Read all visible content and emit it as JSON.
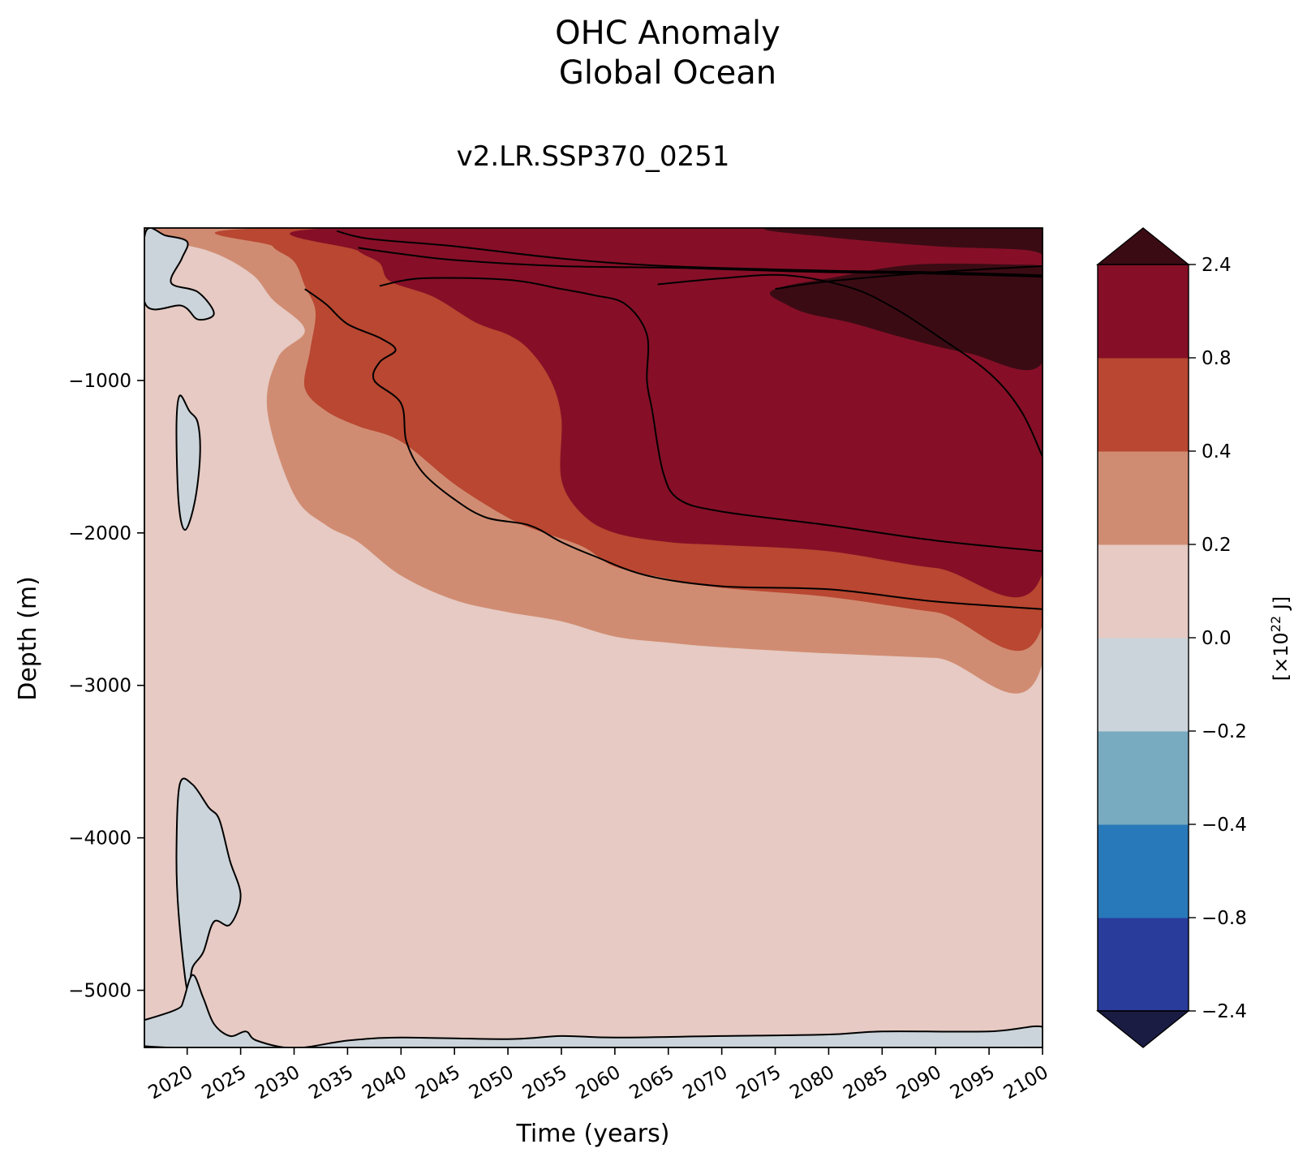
{
  "chart_data": {
    "type": "heatmap",
    "title": "OHC Anomaly\nGlobal Ocean",
    "title_lines": [
      "OHC Anomaly",
      "Global Ocean"
    ],
    "subtitle": "v2.LR.SSP370_0251",
    "xlabel": "Time (years)",
    "ylabel": "Depth (m)",
    "xlim": [
      2016,
      2100
    ],
    "ylim": [
      -5375,
      0
    ],
    "x_ticks": [
      2020,
      2025,
      2030,
      2035,
      2040,
      2045,
      2050,
      2055,
      2060,
      2065,
      2070,
      2075,
      2080,
      2085,
      2090,
      2095,
      2100
    ],
    "x_tick_labels": [
      "2020",
      "2025",
      "2030",
      "2035",
      "2040",
      "2045",
      "2050",
      "2055",
      "2060",
      "2065",
      "2070",
      "2075",
      "2080",
      "2085",
      "2090",
      "2095",
      "2100"
    ],
    "y_ticks": [
      -1000,
      -2000,
      -3000,
      -4000,
      -5000
    ],
    "y_tick_labels": [
      "−1000",
      "−2000",
      "−3000",
      "−4000",
      "−5000"
    ],
    "colorbar": {
      "label_prefix": "[×10",
      "label_exp": "22",
      "label_suffix": " J]",
      "levels": [
        -2.4,
        -0.8,
        -0.4,
        -0.2,
        0.0,
        0.2,
        0.4,
        0.8,
        2.4
      ],
      "tick_labels": [
        "−2.4",
        "−0.8",
        "−0.4",
        "−0.2",
        "0.0",
        "0.2",
        "0.4",
        "0.8",
        "2.4"
      ],
      "colors": [
        "#293c9b",
        "#2879b9",
        "#78aac0",
        "#cbd4da",
        "#e6cac3",
        "#d08c72",
        "#b94731",
        "#860f27"
      ],
      "under_color": "#1a1c44",
      "over_color": "#3b0b14",
      "extend": "both"
    },
    "contour_levels": [
      -0.2,
      0.2,
      0.4,
      0.8,
      1.6,
      2.4
    ],
    "bands": [
      {
        "level": "0.2 to 0.4",
        "color": "#d08c72",
        "boundary": [
          [
            2016.1,
            0
          ],
          [
            2100,
            0
          ],
          [
            2100,
            -2850
          ],
          [
            2090,
            -2820
          ],
          [
            2080,
            -2790
          ],
          [
            2070,
            -2750
          ],
          [
            2065,
            -2720
          ],
          [
            2060,
            -2680
          ],
          [
            2055,
            -2580
          ],
          [
            2050,
            -2520
          ],
          [
            2045,
            -2440
          ],
          [
            2040,
            -2280
          ],
          [
            2036,
            -2060
          ],
          [
            2033,
            -1950
          ],
          [
            2030,
            -1750
          ],
          [
            2027.5,
            -1200
          ],
          [
            2028.5,
            -850
          ],
          [
            2031,
            -670
          ],
          [
            2028,
            -470
          ],
          [
            2026,
            -300
          ],
          [
            2022,
            -150
          ],
          [
            2016.1,
            -60
          ]
        ]
      },
      {
        "level": "0.4 to 0.8",
        "color": "#b94731",
        "boundary": [
          [
            2028,
            0
          ],
          [
            2100,
            0
          ],
          [
            2100,
            -2600
          ],
          [
            2090,
            -2520
          ],
          [
            2080,
            -2420
          ],
          [
            2070,
            -2360
          ],
          [
            2065,
            -2300
          ],
          [
            2060,
            -2220
          ],
          [
            2057,
            -2090
          ],
          [
            2053,
            -1990
          ],
          [
            2050,
            -1900
          ],
          [
            2045,
            -1680
          ],
          [
            2040,
            -1400
          ],
          [
            2036,
            -1300
          ],
          [
            2033,
            -1200
          ],
          [
            2031,
            -1050
          ],
          [
            2031.5,
            -800
          ],
          [
            2032,
            -550
          ],
          [
            2031,
            -380
          ],
          [
            2030,
            -220
          ],
          [
            2028,
            -120
          ]
        ]
      },
      {
        "level": "0.8 to 2.4",
        "color": "#860f27",
        "boundary": [
          [
            2034,
            0
          ],
          [
            2100,
            0
          ],
          [
            2100,
            -2260
          ],
          [
            2090,
            -2230
          ],
          [
            2080,
            -2120
          ],
          [
            2070,
            -2080
          ],
          [
            2065,
            -2060
          ],
          [
            2060,
            -2000
          ],
          [
            2057,
            -1880
          ],
          [
            2055,
            -1650
          ],
          [
            2055,
            -1250
          ],
          [
            2054,
            -1000
          ],
          [
            2052,
            -800
          ],
          [
            2050,
            -700
          ],
          [
            2047,
            -620
          ],
          [
            2043,
            -450
          ],
          [
            2039,
            -350
          ],
          [
            2038,
            -230
          ],
          [
            2036,
            -150
          ]
        ]
      },
      {
        "level": "> 2.4",
        "color": "#3b0b14",
        "boundary": [
          [
            2075,
            0
          ],
          [
            2100,
            0
          ],
          [
            2100,
            -880
          ],
          [
            2093,
            -820
          ],
          [
            2087,
            -720
          ],
          [
            2082,
            -620
          ],
          [
            2078,
            -560
          ],
          [
            2076,
            -500
          ],
          [
            2074.5,
            -430
          ],
          [
            2076,
            -380
          ],
          [
            2080,
            -330
          ],
          [
            2088,
            -240
          ],
          [
            2098,
            -240
          ],
          [
            2100,
            -240
          ],
          [
            2099,
            -150
          ],
          [
            2090,
            -120
          ],
          [
            2080,
            -60
          ]
        ]
      }
    ],
    "negative_regions": [
      {
        "level": "-0.2 to 0.0",
        "color": "#cbd4da",
        "area": "upper left, 0 to -600 m",
        "boundary": [
          [
            2016.1,
            -30
          ],
          [
            2018,
            -50
          ],
          [
            2020,
            -90
          ],
          [
            2019.5,
            -200
          ],
          [
            2018.5,
            -360
          ],
          [
            2021,
            -420
          ],
          [
            2022.5,
            -560
          ],
          [
            2021,
            -600
          ],
          [
            2019.5,
            -510
          ],
          [
            2016.1,
            -500
          ]
        ]
      },
      {
        "level": "-0.2 to 0.0",
        "color": "#cbd4da",
        "area": "mid-depth lens near 2019",
        "boundary": [
          [
            2019.3,
            -1100
          ],
          [
            2020.2,
            -1200
          ],
          [
            2021,
            -1280
          ],
          [
            2021.2,
            -1500
          ],
          [
            2020.7,
            -1800
          ],
          [
            2019.8,
            -1980
          ],
          [
            2019.2,
            -1800
          ],
          [
            2019,
            -1300
          ]
        ]
      },
      {
        "level": "-0.2 to 0.0",
        "color": "#cbd4da",
        "area": "deep lens 2019 to 2025",
        "boundary": [
          [
            2019.3,
            -3650
          ],
          [
            2020.5,
            -3650
          ],
          [
            2022,
            -3800
          ],
          [
            2023,
            -3880
          ],
          [
            2024,
            -4150
          ],
          [
            2025,
            -4380
          ],
          [
            2024,
            -4570
          ],
          [
            2022.5,
            -4550
          ],
          [
            2021.5,
            -4750
          ],
          [
            2020.5,
            -4850
          ],
          [
            2020,
            -5000
          ],
          [
            2019.2,
            -4500
          ],
          [
            2019,
            -4100
          ]
        ]
      },
      {
        "level": "-0.2 to 0.0",
        "color": "#cbd4da",
        "area": "bottom layer",
        "boundary": [
          [
            2018,
            -5375
          ],
          [
            2019.5,
            -5100
          ],
          [
            2020.5,
            -4900
          ],
          [
            2021.5,
            -5050
          ],
          [
            2022.5,
            -5220
          ],
          [
            2024,
            -5300
          ],
          [
            2025.5,
            -5270
          ],
          [
            2026.5,
            -5330
          ],
          [
            2030,
            -5380
          ],
          [
            2035,
            -5330
          ],
          [
            2040,
            -5310
          ],
          [
            2050,
            -5320
          ],
          [
            2055,
            -5300
          ],
          [
            2060,
            -5310
          ],
          [
            2070,
            -5300
          ],
          [
            2080,
            -5290
          ],
          [
            2085,
            -5270
          ],
          [
            2095,
            -5270
          ],
          [
            2100,
            -5240
          ],
          [
            2100,
            -5375
          ]
        ]
      }
    ],
    "contour_lines": [
      {
        "level": 0.8,
        "points": [
          [
            2034,
            -20
          ],
          [
            2037,
            -70
          ],
          [
            2045,
            -120
          ],
          [
            2055,
            -200
          ],
          [
            2065,
            -250
          ],
          [
            2080,
            -280
          ],
          [
            2090,
            -290
          ],
          [
            2100,
            -310
          ]
        ]
      },
      {
        "level": 0.8,
        "points": [
          [
            2031,
            -400
          ],
          [
            2033,
            -500
          ],
          [
            2035,
            -630
          ],
          [
            2038,
            -720
          ],
          [
            2039.5,
            -800
          ],
          [
            2038,
            -880
          ],
          [
            2037.5,
            -1000
          ],
          [
            2040,
            -1150
          ],
          [
            2040.5,
            -1400
          ],
          [
            2042,
            -1600
          ],
          [
            2045,
            -1780
          ],
          [
            2048,
            -1900
          ],
          [
            2052,
            -1950
          ],
          [
            2055,
            -2060
          ],
          [
            2058,
            -2150
          ],
          [
            2063,
            -2280
          ],
          [
            2070,
            -2350
          ],
          [
            2080,
            -2370
          ],
          [
            2090,
            -2450
          ],
          [
            2100,
            -2500
          ]
        ]
      },
      {
        "level": 1.6,
        "points": [
          [
            2036,
            -130
          ],
          [
            2040,
            -170
          ],
          [
            2045,
            -210
          ],
          [
            2055,
            -250
          ],
          [
            2065,
            -260
          ],
          [
            2070,
            -270
          ],
          [
            2080,
            -290
          ],
          [
            2090,
            -300
          ],
          [
            2100,
            -320
          ]
        ]
      },
      {
        "level": 1.6,
        "points": [
          [
            2038,
            -380
          ],
          [
            2042,
            -330
          ],
          [
            2050,
            -340
          ],
          [
            2055,
            -400
          ],
          [
            2058,
            -440
          ],
          [
            2061,
            -500
          ],
          [
            2063,
            -700
          ],
          [
            2063,
            -1000
          ],
          [
            2063.5,
            -1200
          ],
          [
            2064.5,
            -1600
          ],
          [
            2066,
            -1780
          ],
          [
            2070,
            -1860
          ],
          [
            2080,
            -1950
          ],
          [
            2090,
            -2050
          ],
          [
            2100,
            -2120
          ]
        ]
      },
      {
        "level": 1.6,
        "points": [
          [
            2064,
            -370
          ],
          [
            2070,
            -330
          ],
          [
            2076,
            -310
          ],
          [
            2082,
            -390
          ],
          [
            2086,
            -520
          ],
          [
            2090,
            -700
          ],
          [
            2095,
            -950
          ],
          [
            2098,
            -1200
          ],
          [
            2100,
            -1500
          ]
        ]
      },
      {
        "level": 2.4,
        "points": [
          [
            2075,
            -400
          ],
          [
            2080,
            -350
          ],
          [
            2090,
            -290
          ],
          [
            2100,
            -250
          ]
        ]
      }
    ]
  }
}
